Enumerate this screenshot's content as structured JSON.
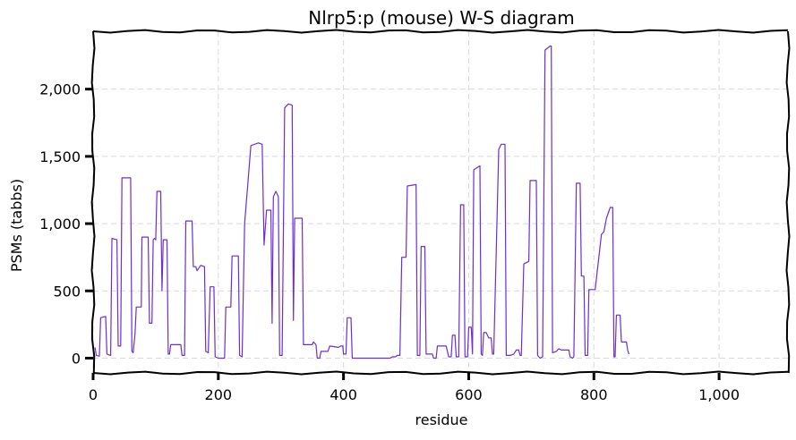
{
  "chart_data": {
    "type": "line",
    "title": "Nlrp5:p (mouse) W-S diagram",
    "xlabel": "residue",
    "ylabel": "PSMs (tabbs)",
    "xlim": [
      0,
      1110
    ],
    "ylim": [
      -110,
      2430
    ],
    "xticks": [
      0,
      200,
      400,
      600,
      800,
      1000
    ],
    "xtick_labels": [
      "0",
      "200",
      "400",
      "600",
      "800",
      "1,000"
    ],
    "yticks": [
      0,
      500,
      1000,
      1500,
      2000
    ],
    "ytick_labels": [
      "0",
      "500",
      "1,000",
      "1,500",
      "2,000"
    ],
    "grid": true,
    "legend": "none",
    "colors": {
      "series": "#6a2fd6",
      "frame": "#000000",
      "grid": "#d9d9d9"
    },
    "series": [
      {
        "color": "#6a2fd6",
        "points": [
          [
            3,
            80
          ],
          [
            5,
            20
          ],
          [
            10,
            15
          ],
          [
            12,
            300
          ],
          [
            20,
            310
          ],
          [
            22,
            30
          ],
          [
            28,
            20
          ],
          [
            30,
            890
          ],
          [
            38,
            880
          ],
          [
            40,
            90
          ],
          [
            44,
            90
          ],
          [
            46,
            1340
          ],
          [
            60,
            1340
          ],
          [
            62,
            50
          ],
          [
            64,
            40
          ],
          [
            67,
            180
          ],
          [
            69,
            380
          ],
          [
            77,
            380
          ],
          [
            78,
            900
          ],
          [
            88,
            900
          ],
          [
            90,
            260
          ],
          [
            94,
            260
          ],
          [
            96,
            880
          ],
          [
            98,
            890
          ],
          [
            100,
            880
          ],
          [
            102,
            1240
          ],
          [
            108,
            1240
          ],
          [
            110,
            500
          ],
          [
            112,
            880
          ],
          [
            118,
            880
          ],
          [
            120,
            30
          ],
          [
            122,
            30
          ],
          [
            124,
            100
          ],
          [
            140,
            100
          ],
          [
            142,
            20
          ],
          [
            146,
            20
          ],
          [
            148,
            1020
          ],
          [
            158,
            1020
          ],
          [
            160,
            680
          ],
          [
            164,
            680
          ],
          [
            166,
            650
          ],
          [
            172,
            690
          ],
          [
            178,
            680
          ],
          [
            180,
            50
          ],
          [
            184,
            40
          ],
          [
            187,
            530
          ],
          [
            193,
            530
          ],
          [
            195,
            10
          ],
          [
            200,
            0
          ],
          [
            210,
            0
          ],
          [
            212,
            380
          ],
          [
            220,
            380
          ],
          [
            222,
            760
          ],
          [
            232,
            760
          ],
          [
            234,
            20
          ],
          [
            238,
            10
          ],
          [
            242,
            1000
          ],
          [
            252,
            1580
          ],
          [
            264,
            1600
          ],
          [
            270,
            1590
          ],
          [
            273,
            840
          ],
          [
            277,
            1100
          ],
          [
            284,
            1100
          ],
          [
            286,
            260
          ],
          [
            288,
            1200
          ],
          [
            292,
            1240
          ],
          [
            296,
            1200
          ],
          [
            298,
            20
          ],
          [
            302,
            20
          ],
          [
            306,
            1860
          ],
          [
            312,
            1890
          ],
          [
            318,
            1880
          ],
          [
            320,
            280
          ],
          [
            322,
            1040
          ],
          [
            334,
            1040
          ],
          [
            336,
            100
          ],
          [
            350,
            100
          ],
          [
            352,
            120
          ],
          [
            356,
            100
          ],
          [
            358,
            0
          ],
          [
            362,
            0
          ],
          [
            364,
            50
          ],
          [
            375,
            50
          ],
          [
            378,
            90
          ],
          [
            392,
            80
          ],
          [
            396,
            90
          ],
          [
            399,
            90
          ],
          [
            400,
            30
          ],
          [
            404,
            30
          ],
          [
            406,
            300
          ],
          [
            412,
            300
          ],
          [
            414,
            0
          ],
          [
            474,
            0
          ],
          [
            478,
            10
          ],
          [
            483,
            10
          ],
          [
            486,
            20
          ],
          [
            490,
            20
          ],
          [
            493,
            750
          ],
          [
            500,
            750
          ],
          [
            502,
            1280
          ],
          [
            516,
            1290
          ],
          [
            518,
            20
          ],
          [
            522,
            20
          ],
          [
            524,
            830
          ],
          [
            530,
            830
          ],
          [
            532,
            30
          ],
          [
            542,
            30
          ],
          [
            544,
            0
          ],
          [
            548,
            0
          ],
          [
            550,
            90
          ],
          [
            564,
            90
          ],
          [
            568,
            10
          ],
          [
            572,
            10
          ],
          [
            574,
            170
          ],
          [
            578,
            170
          ],
          [
            580,
            10
          ],
          [
            584,
            10
          ],
          [
            587,
            1140
          ],
          [
            592,
            1140
          ],
          [
            594,
            10
          ],
          [
            598,
            10
          ],
          [
            600,
            230
          ],
          [
            604,
            230
          ],
          [
            606,
            30
          ],
          [
            608,
            1400
          ],
          [
            618,
            1430
          ],
          [
            620,
            30
          ],
          [
            622,
            20
          ],
          [
            624,
            190
          ],
          [
            628,
            190
          ],
          [
            630,
            170
          ],
          [
            632,
            150
          ],
          [
            636,
            150
          ],
          [
            638,
            30
          ],
          [
            640,
            30
          ],
          [
            648,
            1550
          ],
          [
            652,
            1590
          ],
          [
            658,
            1590
          ],
          [
            660,
            20
          ],
          [
            666,
            20
          ],
          [
            672,
            30
          ],
          [
            676,
            60
          ],
          [
            680,
            60
          ],
          [
            682,
            20
          ],
          [
            684,
            20
          ],
          [
            688,
            700
          ],
          [
            696,
            720
          ],
          [
            698,
            1320
          ],
          [
            708,
            1320
          ],
          [
            710,
            20
          ],
          [
            714,
            0
          ],
          [
            718,
            10
          ],
          [
            722,
            2290
          ],
          [
            730,
            2320
          ],
          [
            732,
            2320
          ],
          [
            734,
            40
          ],
          [
            740,
            50
          ],
          [
            744,
            70
          ],
          [
            748,
            60
          ],
          [
            756,
            60
          ],
          [
            760,
            60
          ],
          [
            762,
            10
          ],
          [
            766,
            0
          ],
          [
            768,
            10
          ],
          [
            772,
            1300
          ],
          [
            778,
            1300
          ],
          [
            780,
            610
          ],
          [
            784,
            610
          ],
          [
            786,
            20
          ],
          [
            790,
            20
          ],
          [
            792,
            510
          ],
          [
            800,
            510
          ],
          [
            802,
            510
          ],
          [
            812,
            920
          ],
          [
            816,
            940
          ],
          [
            820,
            1040
          ],
          [
            826,
            1120
          ],
          [
            830,
            1120
          ],
          [
            832,
            10
          ],
          [
            834,
            10
          ],
          [
            836,
            320
          ],
          [
            842,
            320
          ],
          [
            844,
            120
          ],
          [
            852,
            120
          ],
          [
            854,
            60
          ],
          [
            856,
            30
          ]
        ]
      }
    ]
  }
}
